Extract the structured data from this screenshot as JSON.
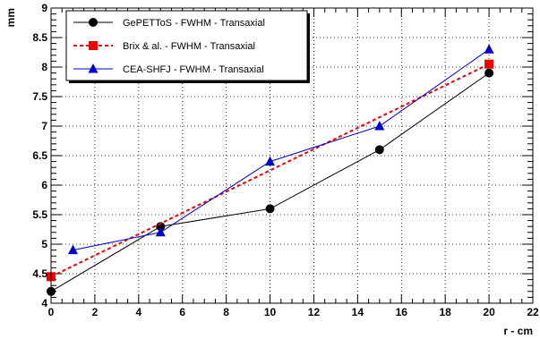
{
  "chart_data": {
    "type": "line",
    "xlabel": "r - cm",
    "ylabel": "mm",
    "xlim": [
      0,
      22
    ],
    "ylim": [
      4,
      9
    ],
    "x_ticks": [
      0,
      2,
      4,
      6,
      8,
      10,
      12,
      14,
      16,
      18,
      20,
      22
    ],
    "y_ticks": [
      4,
      4.5,
      5,
      5.5,
      6,
      6.5,
      7,
      7.5,
      8,
      8.5,
      9
    ],
    "x_tick_labels": [
      "0",
      "2",
      "4",
      "6",
      "8",
      "10",
      "12",
      "14",
      "16",
      "18",
      "20",
      "22"
    ],
    "y_tick_labels": [
      "4",
      "4.5",
      "5",
      "5.5",
      "6",
      "6.5",
      "7",
      "7.5",
      "8",
      "8.5",
      "9"
    ],
    "grid": true,
    "legend_position": "top-left",
    "series": [
      {
        "name": "GePETToS - FWHM - Transaxial",
        "color": "#000000",
        "marker": "circle",
        "dashed": false,
        "x": [
          0,
          5,
          10,
          15,
          20
        ],
        "y": [
          4.2,
          5.3,
          5.6,
          6.6,
          7.9
        ]
      },
      {
        "name": "Brix & al. - FWHM - Transaxial",
        "color": "#ee0000",
        "marker": "square",
        "dashed": true,
        "x": [
          0,
          20
        ],
        "y": [
          4.45,
          8.05
        ]
      },
      {
        "name": "CEA-SHFJ - FWHM - Transaxial",
        "color": "#0000cc",
        "marker": "triangle",
        "dashed": false,
        "x": [
          1,
          5,
          10,
          15,
          20
        ],
        "y": [
          4.9,
          5.2,
          6.4,
          7.0,
          8.3
        ]
      }
    ]
  }
}
